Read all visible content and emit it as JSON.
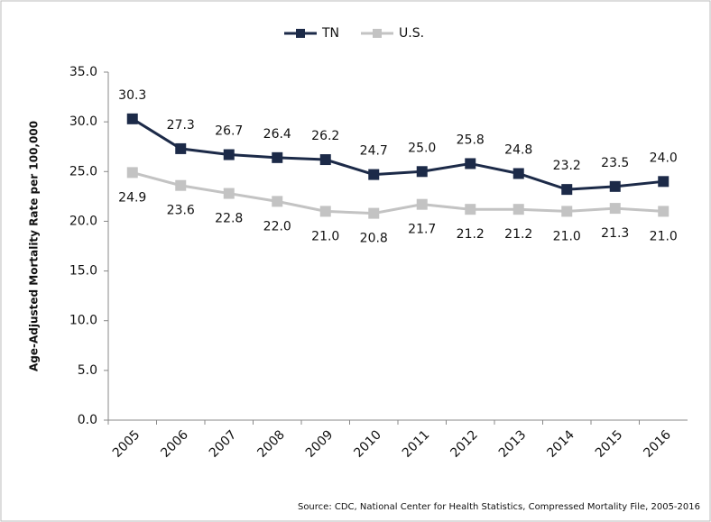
{
  "chart_data": {
    "type": "line",
    "y_axis_label": "Age-Adjusted Mortality Rate per 100,000",
    "source": "Source:  CDC, National Center  for Health Statistics, Compressed Mortality File, 2005-2016",
    "categories": [
      "2005",
      "2006",
      "2007",
      "2008",
      "2009",
      "2010",
      "2011",
      "2012",
      "2013",
      "2014",
      "2015",
      "2016"
    ],
    "series": [
      {
        "name": "TN",
        "color": "#1c2a48",
        "values": [
          30.3,
          27.3,
          26.7,
          26.4,
          26.2,
          24.7,
          25.0,
          25.8,
          24.8,
          23.2,
          23.5,
          24.0
        ],
        "value_labels": [
          "30.3",
          "27.3",
          "26.7",
          "26.4",
          "26.2",
          "24.7",
          "25.0",
          "25.8",
          "24.8",
          "23.2",
          "23.5",
          "24.0"
        ]
      },
      {
        "name": "U.S.",
        "color": "#c3c3c3",
        "values": [
          24.9,
          23.6,
          22.8,
          22.0,
          21.0,
          20.8,
          21.7,
          21.2,
          21.2,
          21.0,
          21.3,
          21.0
        ],
        "value_labels": [
          "24.9",
          "23.6",
          "22.8",
          "22.0",
          "21.0",
          "20.8",
          "21.7",
          "21.2",
          "21.2",
          "21.0",
          "21.3",
          "21.0"
        ]
      }
    ],
    "ylim": [
      0,
      35
    ],
    "yticks": [
      {
        "value": 0,
        "label": "0.0"
      },
      {
        "value": 5,
        "label": "5.0"
      },
      {
        "value": 10,
        "label": "10.0"
      },
      {
        "value": 15,
        "label": "15.0"
      },
      {
        "value": 20,
        "label": "20.0"
      },
      {
        "value": 25,
        "label": "25.0"
      },
      {
        "value": 30,
        "label": "30.0"
      },
      {
        "value": 35,
        "label": "35.0"
      }
    ],
    "legend": "top"
  }
}
